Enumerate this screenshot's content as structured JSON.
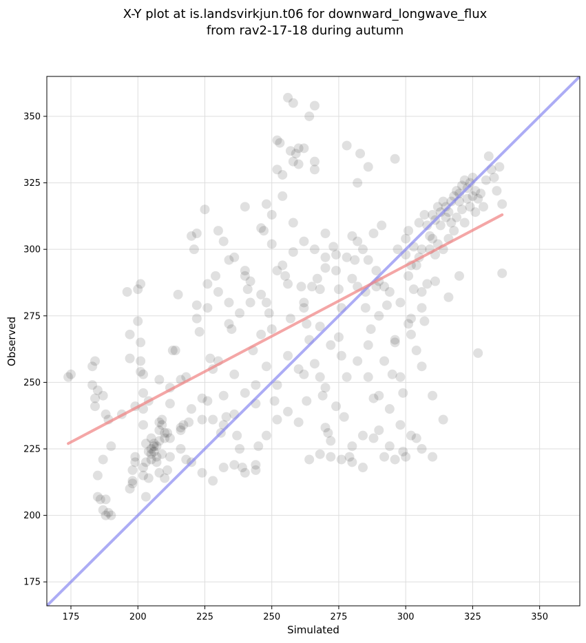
{
  "chart_data": {
    "type": "scatter",
    "title": "X-Y plot at is.landsvirkjun.t06 for downward_longwave_flux",
    "subtitle": "from rav2-17-18 during autumn",
    "xlabel": "Simulated",
    "ylabel": "Observed",
    "xlim": [
      166,
      365
    ],
    "ylim": [
      166,
      365
    ],
    "xticks": [
      175,
      200,
      225,
      250,
      275,
      300,
      325,
      350
    ],
    "yticks": [
      175,
      200,
      225,
      250,
      275,
      300,
      325,
      350
    ],
    "grid": true,
    "point_color": "#000000",
    "point_alpha": 0.12,
    "regression_line": {
      "color": "#f08080",
      "x": [
        174,
        336
      ],
      "y": [
        227,
        313
      ]
    },
    "identity_line": {
      "color": "#8080f0",
      "x": [
        166,
        365
      ],
      "y": [
        166,
        365
      ]
    },
    "points": [
      [
        174,
        252
      ],
      [
        175,
        253
      ],
      [
        183,
        249
      ],
      [
        183,
        256
      ],
      [
        184,
        258
      ],
      [
        184,
        244
      ],
      [
        184,
        241
      ],
      [
        185,
        247
      ],
      [
        185,
        215
      ],
      [
        185,
        207
      ],
      [
        186,
        206
      ],
      [
        187,
        202
      ],
      [
        188,
        200
      ],
      [
        189,
        201
      ],
      [
        190,
        200
      ],
      [
        188,
        206
      ],
      [
        187,
        221
      ],
      [
        187,
        245
      ],
      [
        188,
        238
      ],
      [
        189,
        236
      ],
      [
        190,
        226
      ],
      [
        194,
        238
      ],
      [
        196,
        284
      ],
      [
        197,
        268
      ],
      [
        197,
        259
      ],
      [
        197,
        210
      ],
      [
        198,
        217
      ],
      [
        198,
        213
      ],
      [
        198,
        212
      ],
      [
        199,
        222
      ],
      [
        199,
        220
      ],
      [
        199,
        241
      ],
      [
        200,
        273
      ],
      [
        200,
        285
      ],
      [
        201,
        287
      ],
      [
        201,
        265
      ],
      [
        201,
        258
      ],
      [
        201,
        254
      ],
      [
        202,
        253
      ],
      [
        202,
        246
      ],
      [
        202,
        240
      ],
      [
        202,
        234
      ],
      [
        202,
        218
      ],
      [
        202,
        215
      ],
      [
        203,
        227
      ],
      [
        203,
        220
      ],
      [
        203,
        207
      ],
      [
        204,
        224
      ],
      [
        204,
        214
      ],
      [
        205,
        223
      ],
      [
        205,
        221
      ],
      [
        205,
        225
      ],
      [
        205,
        229
      ],
      [
        206,
        227
      ],
      [
        206,
        226
      ],
      [
        206,
        224
      ],
      [
        207,
        222
      ],
      [
        207,
        220
      ],
      [
        207,
        226
      ],
      [
        208,
        232
      ],
      [
        208,
        228
      ],
      [
        208,
        216
      ],
      [
        209,
        236
      ],
      [
        209,
        234
      ],
      [
        209,
        223
      ],
      [
        210,
        231
      ],
      [
        210,
        229
      ],
      [
        210,
        214
      ],
      [
        211,
        231
      ],
      [
        211,
        217
      ],
      [
        212,
        222
      ],
      [
        212,
        248
      ],
      [
        213,
        262
      ],
      [
        214,
        262
      ],
      [
        215,
        283
      ],
      [
        216,
        232
      ],
      [
        216,
        233
      ],
      [
        217,
        234
      ],
      [
        218,
        252
      ],
      [
        218,
        221
      ],
      [
        219,
        235
      ],
      [
        220,
        305
      ],
      [
        221,
        300
      ],
      [
        222,
        306
      ],
      [
        222,
        279
      ],
      [
        223,
        269
      ],
      [
        224,
        236
      ],
      [
        225,
        315
      ],
      [
        226,
        287
      ],
      [
        226,
        243
      ],
      [
        227,
        259
      ],
      [
        228,
        255
      ],
      [
        229,
        290
      ],
      [
        230,
        307
      ],
      [
        230,
        258
      ],
      [
        231,
        231
      ],
      [
        232,
        234
      ],
      [
        233,
        237
      ],
      [
        234,
        272
      ],
      [
        234,
        296
      ],
      [
        235,
        270
      ],
      [
        236,
        253
      ],
      [
        237,
        230
      ],
      [
        238,
        225
      ],
      [
        239,
        218
      ],
      [
        240,
        292
      ],
      [
        240,
        316
      ],
      [
        241,
        285
      ],
      [
        242,
        288
      ],
      [
        243,
        262
      ],
      [
        244,
        242
      ],
      [
        244,
        217
      ],
      [
        245,
        226
      ],
      [
        246,
        268
      ],
      [
        247,
        307
      ],
      [
        248,
        317
      ],
      [
        248,
        280
      ],
      [
        249,
        276
      ],
      [
        250,
        302
      ],
      [
        250,
        270
      ],
      [
        251,
        243
      ],
      [
        252,
        341
      ],
      [
        252,
        330
      ],
      [
        253,
        340
      ],
      [
        254,
        328
      ],
      [
        254,
        294
      ],
      [
        255,
        290
      ],
      [
        256,
        357
      ],
      [
        257,
        337
      ],
      [
        257,
        274
      ],
      [
        258,
        355
      ],
      [
        258,
        299
      ],
      [
        259,
        336
      ],
      [
        260,
        338
      ],
      [
        260,
        332
      ],
      [
        261,
        286
      ],
      [
        262,
        280
      ],
      [
        262,
        278
      ],
      [
        263,
        272
      ],
      [
        263,
        243
      ],
      [
        264,
        350
      ],
      [
        265,
        286
      ],
      [
        266,
        354
      ],
      [
        266,
        333
      ],
      [
        267,
        289
      ],
      [
        268,
        285
      ],
      [
        268,
        252
      ],
      [
        269,
        245
      ],
      [
        270,
        293
      ],
      [
        270,
        233
      ],
      [
        271,
        231
      ],
      [
        272,
        228
      ],
      [
        273,
        301
      ],
      [
        274,
        292
      ],
      [
        275,
        285
      ],
      [
        275,
        267
      ],
      [
        276,
        260
      ],
      [
        277,
        237
      ],
      [
        278,
        339
      ],
      [
        279,
        222
      ],
      [
        280,
        305
      ],
      [
        280,
        226
      ],
      [
        281,
        296
      ],
      [
        282,
        325
      ],
      [
        282,
        286
      ],
      [
        283,
        336
      ],
      [
        284,
        300
      ],
      [
        284,
        218
      ],
      [
        285,
        278
      ],
      [
        286,
        331
      ],
      [
        286,
        264
      ],
      [
        287,
        270
      ],
      [
        288,
        306
      ],
      [
        288,
        244
      ],
      [
        289,
        286
      ],
      [
        290,
        275
      ],
      [
        290,
        232
      ],
      [
        291,
        309
      ],
      [
        292,
        286
      ],
      [
        293,
        279
      ],
      [
        294,
        226
      ],
      [
        295,
        253
      ],
      [
        296,
        334
      ],
      [
        296,
        266
      ],
      [
        297,
        300
      ],
      [
        298,
        252
      ],
      [
        299,
        246
      ],
      [
        299,
        224
      ],
      [
        300,
        298
      ],
      [
        300,
        304
      ],
      [
        301,
        307
      ],
      [
        301,
        290
      ],
      [
        302,
        294
      ],
      [
        302,
        274
      ],
      [
        303,
        301
      ],
      [
        303,
        285
      ],
      [
        304,
        294
      ],
      [
        304,
        262
      ],
      [
        305,
        310
      ],
      [
        305,
        297
      ],
      [
        306,
        300
      ],
      [
        306,
        284
      ],
      [
        307,
        313
      ],
      [
        307,
        273
      ],
      [
        308,
        309
      ],
      [
        308,
        287
      ],
      [
        309,
        300
      ],
      [
        309,
        305
      ],
      [
        310,
        313
      ],
      [
        310,
        304
      ],
      [
        311,
        311
      ],
      [
        311,
        298
      ],
      [
        312,
        316
      ],
      [
        312,
        302
      ],
      [
        313,
        314
      ],
      [
        313,
        309
      ],
      [
        314,
        318
      ],
      [
        314,
        300
      ],
      [
        315,
        312
      ],
      [
        315,
        316
      ],
      [
        316,
        314
      ],
      [
        316,
        304
      ],
      [
        317,
        318
      ],
      [
        317,
        310
      ],
      [
        318,
        320
      ],
      [
        318,
        307
      ],
      [
        319,
        322
      ],
      [
        319,
        312
      ],
      [
        320,
        321
      ],
      [
        320,
        318
      ],
      [
        321,
        324
      ],
      [
        321,
        315
      ],
      [
        322,
        326
      ],
      [
        322,
        310
      ],
      [
        323,
        323
      ],
      [
        323,
        319
      ],
      [
        324,
        325
      ],
      [
        324,
        316
      ],
      [
        325,
        327
      ],
      [
        325,
        320
      ],
      [
        326,
        322
      ],
      [
        326,
        314
      ],
      [
        327,
        319
      ],
      [
        328,
        321
      ],
      [
        329,
        316
      ],
      [
        330,
        326
      ],
      [
        331,
        335
      ],
      [
        332,
        330
      ],
      [
        333,
        327
      ],
      [
        334,
        322
      ],
      [
        335,
        331
      ],
      [
        336,
        317
      ],
      [
        336,
        291
      ],
      [
        327,
        261
      ],
      [
        320,
        290
      ],
      [
        316,
        282
      ],
      [
        311,
        288
      ],
      [
        306,
        278
      ],
      [
        301,
        272
      ],
      [
        296,
        265
      ],
      [
        292,
        258
      ],
      [
        289,
        292
      ],
      [
        285,
        284
      ],
      [
        280,
        289
      ],
      [
        276,
        278
      ],
      [
        272,
        264
      ],
      [
        268,
        271
      ],
      [
        264,
        266
      ],
      [
        260,
        255
      ],
      [
        256,
        260
      ],
      [
        252,
        249
      ],
      [
        248,
        256
      ],
      [
        244,
        249
      ],
      [
        240,
        246
      ],
      [
        236,
        238
      ],
      [
        232,
        245
      ],
      [
        228,
        236
      ],
      [
        224,
        244
      ],
      [
        220,
        240
      ],
      [
        216,
        251
      ],
      [
        212,
        242
      ],
      [
        208,
        251
      ],
      [
        204,
        243
      ],
      [
        232,
        303
      ],
      [
        236,
        297
      ],
      [
        240,
        290
      ],
      [
        246,
        308
      ],
      [
        250,
        313
      ],
      [
        254,
        320
      ],
      [
        258,
        333
      ],
      [
        262,
        338
      ],
      [
        266,
        330
      ],
      [
        270,
        306
      ],
      [
        274,
        298
      ],
      [
        278,
        297
      ],
      [
        282,
        303
      ],
      [
        286,
        296
      ],
      [
        290,
        288
      ],
      [
        294,
        284
      ],
      [
        298,
        280
      ],
      [
        302,
        268
      ],
      [
        306,
        256
      ],
      [
        310,
        245
      ],
      [
        314,
        236
      ],
      [
        304,
        229
      ],
      [
        300,
        222
      ],
      [
        296,
        221
      ],
      [
        292,
        222
      ],
      [
        288,
        229
      ],
      [
        284,
        230
      ],
      [
        280,
        220
      ],
      [
        276,
        221
      ],
      [
        272,
        222
      ],
      [
        268,
        223
      ],
      [
        264,
        221
      ],
      [
        260,
        235
      ],
      [
        256,
        239
      ],
      [
        252,
        236
      ],
      [
        248,
        230
      ],
      [
        244,
        219
      ],
      [
        240,
        216
      ],
      [
        236,
        219
      ],
      [
        232,
        218
      ],
      [
        228,
        213
      ],
      [
        224,
        216
      ],
      [
        220,
        220
      ],
      [
        216,
        225
      ],
      [
        212,
        229
      ],
      [
        208,
        235
      ],
      [
        262,
        253
      ],
      [
        266,
        257
      ],
      [
        270,
        248
      ],
      [
        274,
        241
      ],
      [
        278,
        252
      ],
      [
        282,
        258
      ],
      [
        286,
        252
      ],
      [
        290,
        245
      ],
      [
        294,
        240
      ],
      [
        298,
        234
      ],
      [
        302,
        230
      ],
      [
        306,
        225
      ],
      [
        310,
        222
      ],
      [
        258,
        310
      ],
      [
        262,
        303
      ],
      [
        266,
        300
      ],
      [
        270,
        297
      ],
      [
        252,
        292
      ],
      [
        256,
        287
      ],
      [
        246,
        283
      ],
      [
        242,
        280
      ],
      [
        238,
        276
      ],
      [
        234,
        280
      ],
      [
        230,
        284
      ],
      [
        226,
        278
      ],
      [
        222,
        274
      ]
    ]
  }
}
